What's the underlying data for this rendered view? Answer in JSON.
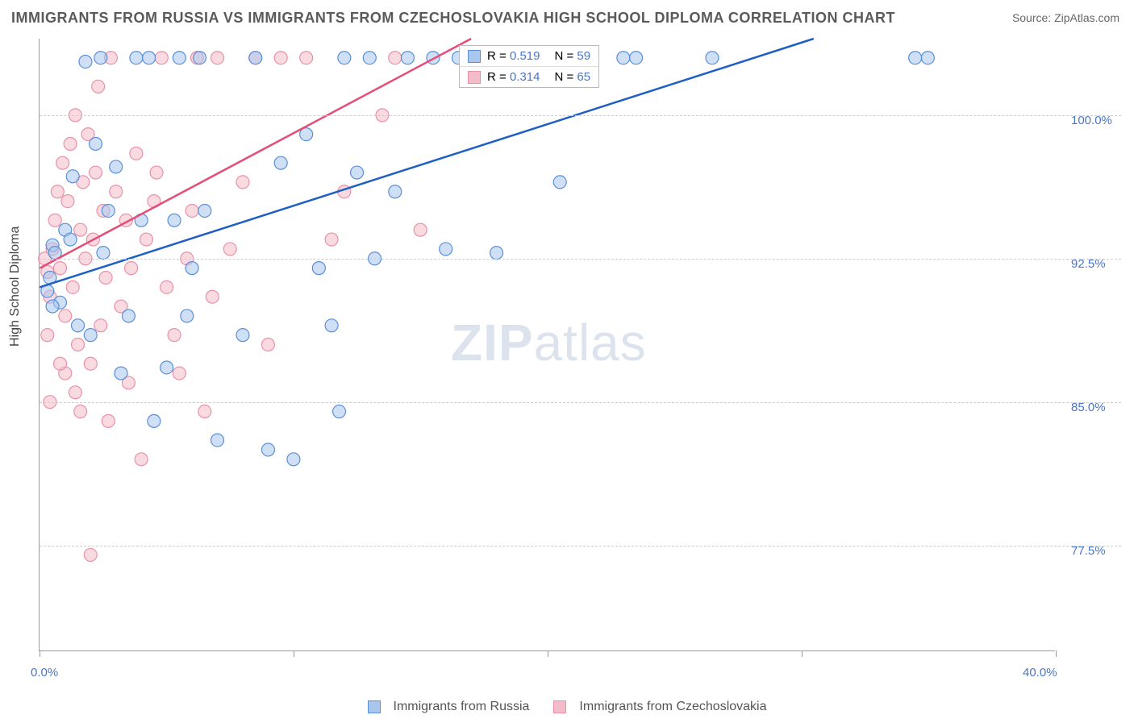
{
  "title": "IMMIGRANTS FROM RUSSIA VS IMMIGRANTS FROM CZECHOSLOVAKIA HIGH SCHOOL DIPLOMA CORRELATION CHART",
  "source_label": "Source: ZipAtlas.com",
  "watermark": {
    "bold": "ZIP",
    "light": "atlas"
  },
  "chart": {
    "type": "scatter",
    "ylabel": "High School Diploma",
    "xlim": [
      0,
      40
    ],
    "ylim": [
      72,
      104
    ],
    "x_ticks": [
      0,
      10,
      20,
      30,
      40
    ],
    "x_tick_labels": [
      "0.0%",
      "",
      "",
      "",
      "40.0%"
    ],
    "y_ticks": [
      77.5,
      85.0,
      92.5,
      100.0
    ],
    "y_tick_labels": [
      "77.5%",
      "85.0%",
      "92.5%",
      "100.0%"
    ],
    "grid_color": "#cccccc",
    "background_color": "#ffffff",
    "axis_color": "#999999",
    "label_fontsize": 16,
    "tick_color": "#4a76c7",
    "series": [
      {
        "name": "Immigrants from Russia",
        "color_fill": "#a8c6ee",
        "color_stroke": "#5a8fd6",
        "line_color": "#1f5fc4",
        "marker_radius": 8,
        "fill_opacity": 0.55,
        "R": "0.519",
        "N": "59",
        "trend": {
          "x1": 0,
          "y1": 91.0,
          "x2": 30.5,
          "y2": 104.0
        },
        "points": [
          [
            0.3,
            90.8
          ],
          [
            0.5,
            93.2
          ],
          [
            0.4,
            91.5
          ],
          [
            0.8,
            90.2
          ],
          [
            0.6,
            92.8
          ],
          [
            1.0,
            94.0
          ],
          [
            1.3,
            96.8
          ],
          [
            1.5,
            89.0
          ],
          [
            1.2,
            93.5
          ],
          [
            1.8,
            102.8
          ],
          [
            2.0,
            88.5
          ],
          [
            2.2,
            98.5
          ],
          [
            2.4,
            103.0
          ],
          [
            2.5,
            92.8
          ],
          [
            2.7,
            95.0
          ],
          [
            3.0,
            97.3
          ],
          [
            3.2,
            86.5
          ],
          [
            3.5,
            89.5
          ],
          [
            3.8,
            103.0
          ],
          [
            4.0,
            94.5
          ],
          [
            4.3,
            103.0
          ],
          [
            4.5,
            84.0
          ],
          [
            5.0,
            86.8
          ],
          [
            5.3,
            94.5
          ],
          [
            5.5,
            103.0
          ],
          [
            5.8,
            89.5
          ],
          [
            6.0,
            92.0
          ],
          [
            6.5,
            95.0
          ],
          [
            6.3,
            103.0
          ],
          [
            7.0,
            83.0
          ],
          [
            8.0,
            88.5
          ],
          [
            8.5,
            103.0
          ],
          [
            9.0,
            82.5
          ],
          [
            9.5,
            97.5
          ],
          [
            10.0,
            82.0
          ],
          [
            10.5,
            99.0
          ],
          [
            11.0,
            92.0
          ],
          [
            11.5,
            89.0
          ],
          [
            12.0,
            103.0
          ],
          [
            11.8,
            84.5
          ],
          [
            12.5,
            97.0
          ],
          [
            13.0,
            103.0
          ],
          [
            13.2,
            92.5
          ],
          [
            14.0,
            96.0
          ],
          [
            14.5,
            103.0
          ],
          [
            15.5,
            103.0
          ],
          [
            16.0,
            93.0
          ],
          [
            16.5,
            103.0
          ],
          [
            18.0,
            92.8
          ],
          [
            18.2,
            103.0
          ],
          [
            20.0,
            103.0
          ],
          [
            20.5,
            96.5
          ],
          [
            21.0,
            103.0
          ],
          [
            23.0,
            103.0
          ],
          [
            23.5,
            103.0
          ],
          [
            26.5,
            103.0
          ],
          [
            34.5,
            103.0
          ],
          [
            35.0,
            103.0
          ],
          [
            0.5,
            90.0
          ]
        ]
      },
      {
        "name": "Immigrants from Czechoslovakia",
        "color_fill": "#f4bcc9",
        "color_stroke": "#e891a8",
        "line_color": "#e34d77",
        "marker_radius": 8,
        "fill_opacity": 0.55,
        "R": "0.314",
        "N": "65",
        "trend": {
          "x1": 0,
          "y1": 92.0,
          "x2": 17.0,
          "y2": 104.0
        },
        "points": [
          [
            0.2,
            92.5
          ],
          [
            0.3,
            91.8
          ],
          [
            0.5,
            93.0
          ],
          [
            0.4,
            90.5
          ],
          [
            0.6,
            94.5
          ],
          [
            0.7,
            96.0
          ],
          [
            0.8,
            92.0
          ],
          [
            0.9,
            97.5
          ],
          [
            1.0,
            89.5
          ],
          [
            1.1,
            95.5
          ],
          [
            1.2,
            98.5
          ],
          [
            1.3,
            91.0
          ],
          [
            1.4,
            100.0
          ],
          [
            1.5,
            88.0
          ],
          [
            1.6,
            94.0
          ],
          [
            1.7,
            96.5
          ],
          [
            1.8,
            92.5
          ],
          [
            1.9,
            99.0
          ],
          [
            2.0,
            87.0
          ],
          [
            2.1,
            93.5
          ],
          [
            2.2,
            97.0
          ],
          [
            2.3,
            101.5
          ],
          [
            2.4,
            89.0
          ],
          [
            2.5,
            95.0
          ],
          [
            2.7,
            84.0
          ],
          [
            2.8,
            103.0
          ],
          [
            3.0,
            96.0
          ],
          [
            3.2,
            90.0
          ],
          [
            3.4,
            94.5
          ],
          [
            3.5,
            86.0
          ],
          [
            3.8,
            98.0
          ],
          [
            4.0,
            82.0
          ],
          [
            4.2,
            93.5
          ],
          [
            4.5,
            95.5
          ],
          [
            4.8,
            103.0
          ],
          [
            5.0,
            91.0
          ],
          [
            5.3,
            88.5
          ],
          [
            5.5,
            86.5
          ],
          [
            6.0,
            95.0
          ],
          [
            6.2,
            103.0
          ],
          [
            6.5,
            84.5
          ],
          [
            7.0,
            103.0
          ],
          [
            7.5,
            93.0
          ],
          [
            8.0,
            96.5
          ],
          [
            8.5,
            103.0
          ],
          [
            9.0,
            88.0
          ],
          [
            9.5,
            103.0
          ],
          [
            10.5,
            103.0
          ],
          [
            11.5,
            93.5
          ],
          [
            14.0,
            103.0
          ],
          [
            15.0,
            94.0
          ],
          [
            0.4,
            85.0
          ],
          [
            1.0,
            86.5
          ],
          [
            1.6,
            84.5
          ],
          [
            2.0,
            77.0
          ],
          [
            0.3,
            88.5
          ],
          [
            0.8,
            87.0
          ],
          [
            1.4,
            85.5
          ],
          [
            2.6,
            91.5
          ],
          [
            3.6,
            92.0
          ],
          [
            4.6,
            97.0
          ],
          [
            5.8,
            92.5
          ],
          [
            6.8,
            90.5
          ],
          [
            12.0,
            96.0
          ],
          [
            13.5,
            100.0
          ]
        ]
      }
    ]
  },
  "legend_top": {
    "R_prefix": "R = ",
    "N_prefix": "N = "
  },
  "legend_bottom": {
    "series1": "Immigrants from Russia",
    "series2": "Immigrants from Czechoslovakia"
  }
}
